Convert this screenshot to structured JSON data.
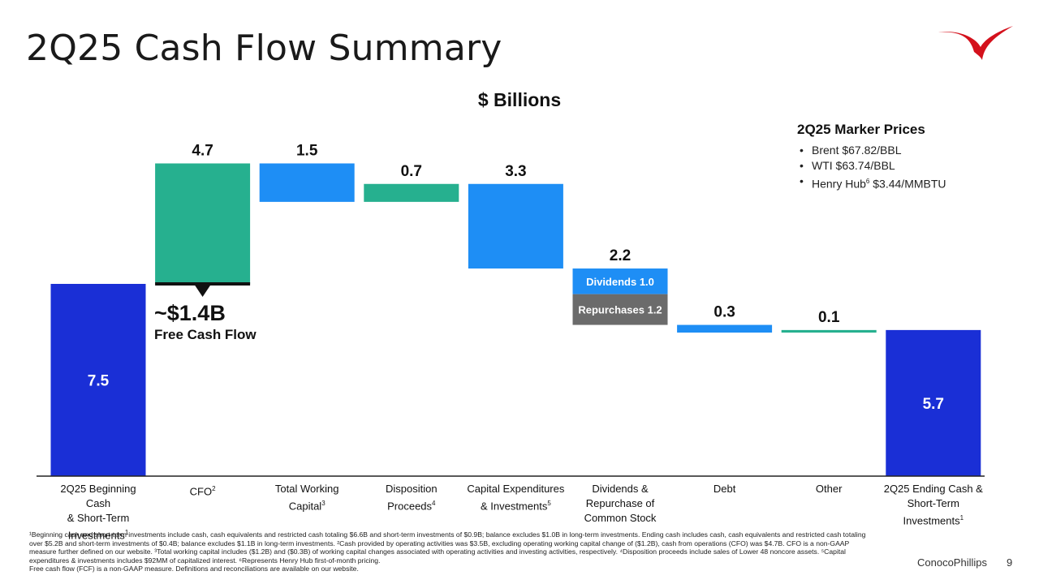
{
  "slide": {
    "title": "2Q25 Cash Flow Summary",
    "unit_label": "$ Billions",
    "company": "ConocoPhillips",
    "page_number": "9"
  },
  "marker_prices": {
    "title": "2Q25 Marker Prices",
    "items": [
      {
        "text": "Brent $67.82/BBL",
        "sup": ""
      },
      {
        "text": "WTI $63.74/BBL",
        "sup": ""
      },
      {
        "text": "Henry Hub",
        "sup": "6",
        "after": " $3.44/MMBTU"
      }
    ]
  },
  "fcf_callout": {
    "value": "~$1.4B",
    "label": "Free Cash Flow"
  },
  "x_labels": [
    {
      "lines": [
        "2Q25 Beginning Cash",
        "& Short-Term",
        "Investments"
      ],
      "sup": "1"
    },
    {
      "lines": [
        "CFO"
      ],
      "sup": "2"
    },
    {
      "lines": [
        "Total Working",
        "Capital"
      ],
      "sup": "3"
    },
    {
      "lines": [
        "Disposition",
        "Proceeds"
      ],
      "sup": "4"
    },
    {
      "lines": [
        "Capital Expenditures",
        "& Investments"
      ],
      "sup": "5"
    },
    {
      "lines": [
        "Dividends &",
        "Repurchase of",
        "Common Stock"
      ],
      "sup": ""
    },
    {
      "lines": [
        "Debt"
      ],
      "sup": ""
    },
    {
      "lines": [
        "Other"
      ],
      "sup": ""
    },
    {
      "lines": [
        "2Q25 Ending Cash &",
        "Short-Term",
        "Investments"
      ],
      "sup": "1"
    }
  ],
  "chart_data": {
    "type": "bar",
    "subtype": "waterfall",
    "title": "2Q25 Cash Flow Summary",
    "ylabel": "$ Billions",
    "ylim": [
      0,
      12.2
    ],
    "categories": [
      "2Q25 Beginning Cash & Short-Term Investments",
      "CFO",
      "Total Working Capital",
      "Disposition Proceeds",
      "Capital Expenditures & Investments",
      "Dividends & Repurchase of Common Stock",
      "Debt",
      "Other",
      "2Q25 Ending Cash & Short-Term Investments"
    ],
    "steps": [
      {
        "kind": "total",
        "value": 7.5,
        "label": "7.5",
        "color": "#1a2fd6"
      },
      {
        "kind": "increase",
        "value": 4.7,
        "label": "4.7",
        "color": "#26b08f"
      },
      {
        "kind": "decrease",
        "value": 1.5,
        "label": "1.5",
        "color": "#1e8ef5"
      },
      {
        "kind": "increase",
        "value": 0.7,
        "label": "0.7",
        "color": "#26b08f"
      },
      {
        "kind": "decrease",
        "value": 3.3,
        "label": "3.3",
        "color": "#1e8ef5"
      },
      {
        "kind": "decrease",
        "value": 2.2,
        "label": "2.2",
        "segments": [
          {
            "label": "Dividends 1.0",
            "value": 1.0,
            "color": "#1e8ef5"
          },
          {
            "label": "Repurchases 1.2",
            "value": 1.2,
            "color": "#6b6b6b"
          }
        ]
      },
      {
        "kind": "decrease",
        "value": 0.3,
        "label": "0.3",
        "color": "#1e8ef5"
      },
      {
        "kind": "increase",
        "value": 0.1,
        "label": "0.1",
        "color": "#26b08f"
      },
      {
        "kind": "total",
        "value": 5.7,
        "label": "5.7",
        "color": "#1a2fd6"
      }
    ],
    "annotation": {
      "text": "~$1.4B Free Cash Flow",
      "category": "CFO",
      "value": 7.5
    }
  },
  "footnotes": [
    "¹Beginning cash and short-term investments include cash, cash equivalents and restricted cash totaling $6.6B and short-term investments of $0.9B; balance excludes $1.0B in long-term investments. Ending cash includes cash, cash equivalents and restricted cash totaling over $5.2B and short-term investments of $0.4B; balance excludes $1.1B in long-term investments. ²Cash provided by operating activities was $3.5B, excluding operating working capital change of ($1.2B), cash from operations (CFO) was $4.7B. CFO is a non-GAAP measure further defined on our website. ³Total working capital includes ($1.2B) and ($0.3B) of working capital changes associated with operating activities and investing activities, respectively. ⁴Disposition proceeds include sales of Lower 48 noncore assets. ⁵Capital expenditures & investments includes $92MM of capitalized interest. ⁶Represents Henry Hub first-of-month pricing.",
    "Free cash flow (FCF) is a non-GAAP measure. Definitions and reconciliations are available on our website."
  ],
  "colors": {
    "brand_red": "#d4111c",
    "axis": "#222222"
  }
}
